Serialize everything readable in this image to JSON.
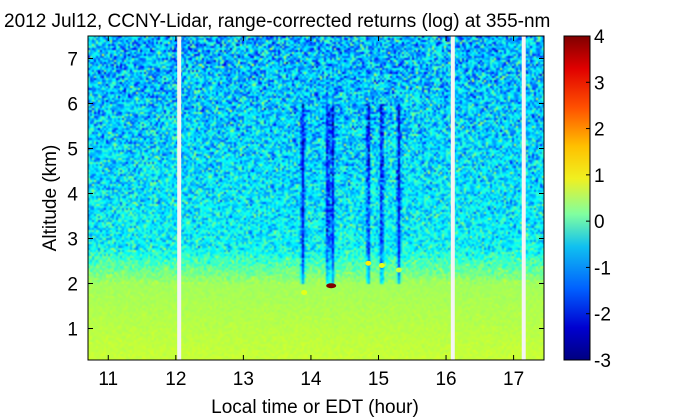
{
  "chart_data": {
    "type": "heatmap",
    "title": "2012 Jul12, CCNY-Lidar, range-corrected returns (log) at 355-nm",
    "xlabel": "Local time or EDT (hour)",
    "ylabel": "Altitude (km)",
    "xlim": [
      10.7,
      17.45
    ],
    "ylim": [
      0.3,
      7.5
    ],
    "x_ticks": [
      11,
      12,
      13,
      14,
      15,
      16,
      17
    ],
    "y_ticks": [
      1,
      2,
      3,
      4,
      5,
      6,
      7
    ],
    "colorbar": {
      "range": [
        -3,
        4
      ],
      "ticks": [
        4,
        3,
        2,
        1,
        0,
        -1,
        -2,
        -3
      ],
      "colormap": "jet"
    },
    "data_gaps_hours": [
      12.05,
      16.1,
      17.15
    ],
    "features": [
      {
        "x": 14.3,
        "y": 1.95,
        "value": 4
      },
      {
        "x": 13.9,
        "y": 1.8,
        "value": 1.2
      },
      {
        "x": 14.85,
        "y": 2.45,
        "value": 1.5
      },
      {
        "x": 15.05,
        "y": 2.4,
        "value": 1.2
      },
      {
        "x": 15.3,
        "y": 2.3,
        "value": 1.0
      }
    ]
  }
}
